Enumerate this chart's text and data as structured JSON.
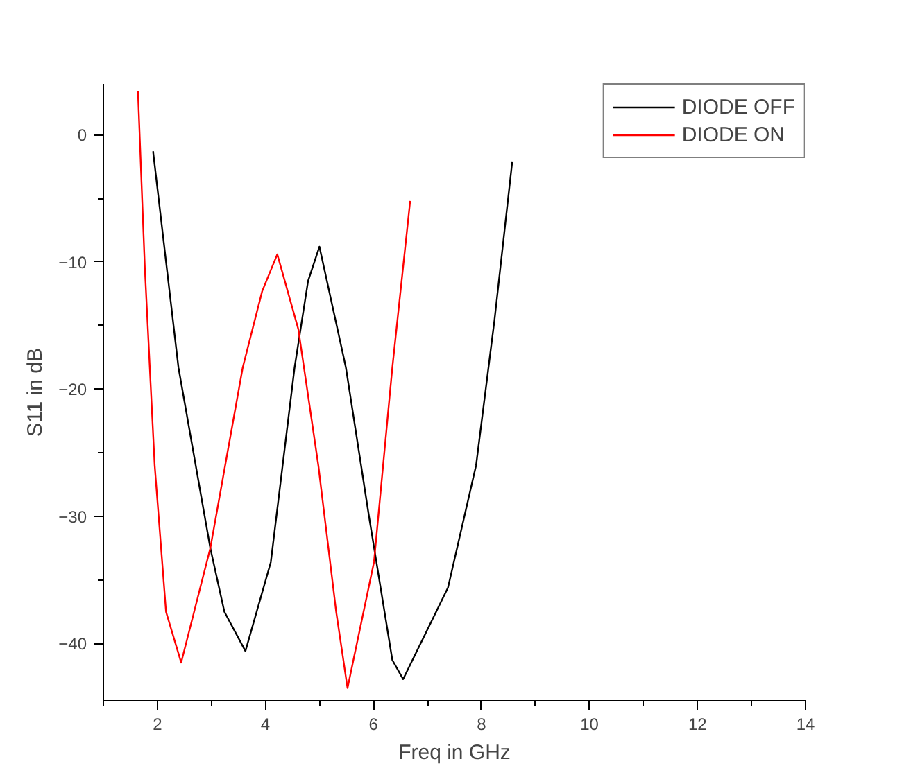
{
  "chart_data": {
    "type": "line",
    "xlabel": "Freq in GHz",
    "ylabel": "S11 in dB",
    "xlim": [
      1,
      14
    ],
    "ylim": [
      -44.5,
      4
    ],
    "xticks": [
      2,
      4,
      6,
      8,
      10,
      12,
      14
    ],
    "yticks": [
      0,
      -10,
      -20,
      -30,
      -40
    ],
    "grid": false,
    "legend": "top right",
    "marker": "none",
    "line_style": "solid",
    "series": [
      {
        "name": "DIODE OFF",
        "color": "#000000",
        "x": [
          1.92,
          2.39,
          2.98,
          3.24,
          3.63,
          4.1,
          4.54,
          4.79,
          5.0,
          5.49,
          5.91,
          6.35,
          6.55,
          7.38,
          7.9,
          8.24,
          8.57
        ],
        "values": [
          -1.3,
          -18.3,
          -32.5,
          -37.5,
          -40.6,
          -33.6,
          -18.3,
          -11.5,
          -8.8,
          -18.3,
          -29.8,
          -41.3,
          -42.8,
          -35.6,
          -26.0,
          -14.6,
          -2.1
        ]
      },
      {
        "name": "DIODE ON",
        "color": "#ff0000",
        "x": [
          1.64,
          1.77,
          1.95,
          2.16,
          2.44,
          2.98,
          3.58,
          3.94,
          4.22,
          4.61,
          4.98,
          5.31,
          5.52,
          6.01,
          6.35,
          6.68
        ],
        "values": [
          3.4,
          -10.7,
          -26.0,
          -37.5,
          -41.5,
          -32.5,
          -18.3,
          -12.3,
          -9.4,
          -15.3,
          -26.0,
          -37.5,
          -43.5,
          -33.6,
          -18.3,
          -5.2
        ]
      }
    ]
  }
}
